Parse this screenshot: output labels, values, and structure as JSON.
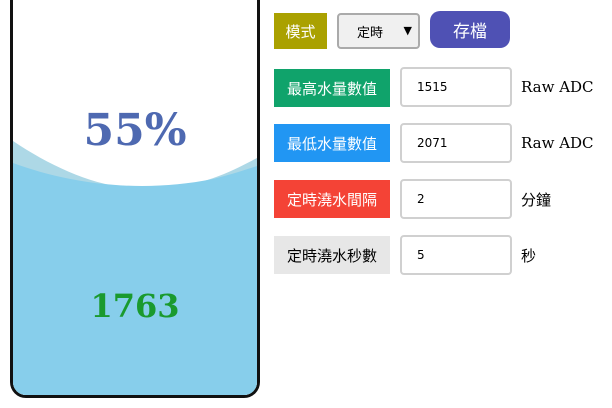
{
  "tank": {
    "percent": "55%",
    "reading": "1763",
    "level": 0.55,
    "water_color": "#87ceeb",
    "wave_color": "#add8e6"
  },
  "mode": {
    "label": "模式",
    "selected": "定時",
    "label_color": "#aaa100"
  },
  "save_label": "存檔",
  "rows": [
    {
      "label": "最高水量數值",
      "value": "1515",
      "unit": "Raw ADC",
      "color": "#10a36b"
    },
    {
      "label": "最低水量數值",
      "value": "2071",
      "unit": "Raw ADC",
      "color": "#2196f3"
    },
    {
      "label": "定時澆水間隔",
      "value": "2",
      "unit": "分鐘",
      "color": "#f44336"
    },
    {
      "label": "定時澆水秒數",
      "value": "5",
      "unit": "秒",
      "color": "#e7e7e7"
    }
  ]
}
